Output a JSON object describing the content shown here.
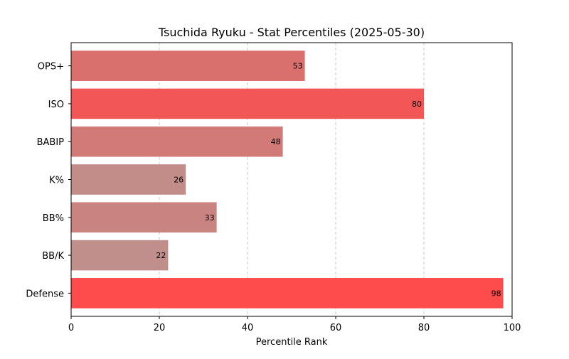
{
  "chart_data": {
    "type": "bar",
    "orientation": "horizontal",
    "title": "Tsuchida Ryuku - Stat Percentiles (2025-05-30)",
    "xlabel": "Percentile Rank",
    "ylabel": "",
    "xlim": [
      0,
      100
    ],
    "xticks": [
      0,
      20,
      40,
      60,
      80,
      100
    ],
    "grid": {
      "x": true,
      "y": false,
      "style": "dashed"
    },
    "categories": [
      "OPS+",
      "ISO",
      "BABIP",
      "K%",
      "BB%",
      "BB/K",
      "Defense"
    ],
    "values": [
      53,
      80,
      48,
      26,
      33,
      22,
      98
    ],
    "colors": [
      "#da706d",
      "#f35656",
      "#d27a77",
      "#c28d89",
      "#c98380",
      "#c08e8b",
      "#fe4c4c"
    ],
    "data_labels": true
  }
}
